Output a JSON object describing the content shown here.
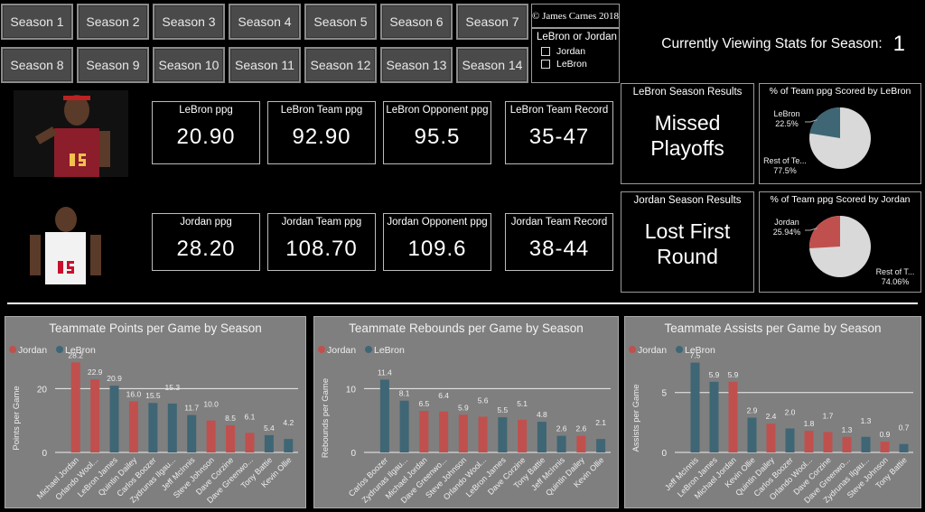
{
  "seasons": [
    "Season 1",
    "Season 2",
    "Season 3",
    "Season 4",
    "Season 5",
    "Season 6",
    "Season 7",
    "Season 8",
    "Season 9",
    "Season 10",
    "Season 11",
    "Season 12",
    "Season 13",
    "Season 14"
  ],
  "copyright": "© James Carnes 2018",
  "toggle": {
    "title": "LeBron or Jordan",
    "options": [
      "Jordan",
      "LeBron"
    ]
  },
  "header": {
    "label": "Currently Viewing Stats for Season:",
    "season": "1"
  },
  "colors": {
    "jordan": "#c0504d",
    "lebron": "#3f6675",
    "rest": "#d9d9d9",
    "panel": "#7f7f7f"
  },
  "lebron": {
    "cards": [
      {
        "label": "LeBron ppg",
        "value": "20.90"
      },
      {
        "label": "LeBron Team ppg",
        "value": "92.90"
      },
      {
        "label": "LeBron Opponent ppg",
        "value": "95.5"
      },
      {
        "label": "LeBron Team Record",
        "value": "35-47"
      }
    ],
    "results_title": "LeBron Season Results",
    "results": "Missed Playoffs",
    "pie": {
      "title": "% of Team ppg Scored by LeBron",
      "player_label": "LeBron",
      "player_pct": "22.5%",
      "player_value": 22.5,
      "rest_label": "Rest of Te...",
      "rest_pct": "77.5%"
    }
  },
  "jordan": {
    "cards": [
      {
        "label": "Jordan ppg",
        "value": "28.20"
      },
      {
        "label": "Jordan Team ppg",
        "value": "108.70"
      },
      {
        "label": "Jordan Opponent ppg",
        "value": "109.6"
      },
      {
        "label": "Jordan Team Record",
        "value": "38-44"
      }
    ],
    "results_title": "Jordan Season Results",
    "results": "Lost First Round",
    "pie": {
      "title": "% of Team ppg Scored by Jordan",
      "player_label": "Jordan",
      "player_pct": "25.94%",
      "player_value": 25.94,
      "rest_label": "Rest of T...",
      "rest_pct": "74.06%"
    }
  },
  "chart_data": [
    {
      "type": "bar",
      "title": "Teammate Points per Game by Season",
      "ylabel": "Points per Game",
      "legend": [
        "Jordan",
        "LeBron"
      ],
      "ylim": [
        0,
        30
      ],
      "yticks": [
        0,
        20
      ],
      "grid": true,
      "legend_position": "top-left",
      "categories": [
        "Michael Jordan",
        "Orlando Wool...",
        "LeBron James",
        "Quintin Dailey",
        "Carlos Boozer",
        "Zydrunas Ilgau...",
        "Jeff McInnis",
        "Steve Johnson",
        "Dave Corzine",
        "Dave Greenwo...",
        "Tony Battie",
        "Kevin Ollie"
      ],
      "values": [
        28.2,
        22.9,
        20.9,
        16.0,
        15.5,
        15.3,
        11.7,
        10.0,
        8.5,
        6.1,
        5.4,
        4.2
      ],
      "series": [
        "Jordan",
        "Jordan",
        "LeBron",
        "Jordan",
        "LeBron",
        "LeBron",
        "LeBron",
        "Jordan",
        "Jordan",
        "Jordan",
        "LeBron",
        "LeBron"
      ]
    },
    {
      "type": "bar",
      "title": "Teammate Rebounds per Game by Season",
      "ylabel": "Rebounds per Game",
      "legend": [
        "Jordan",
        "LeBron"
      ],
      "ylim": [
        0,
        15
      ],
      "yticks": [
        0,
        10
      ],
      "grid": true,
      "legend_position": "top-left",
      "categories": [
        "Carlos Boozer",
        "Zydrunas Ilgau...",
        "Michael Jordan",
        "Dave Greenwo...",
        "Steve Johnson",
        "Orlando Wool...",
        "LeBron James",
        "Dave Corzine",
        "Tony Battie",
        "Jeff McInnis",
        "Quintin Dailey",
        "Kevin Ollie"
      ],
      "values": [
        11.4,
        8.1,
        6.5,
        6.4,
        5.9,
        5.6,
        5.5,
        5.1,
        4.8,
        2.6,
        2.6,
        2.1
      ],
      "series": [
        "LeBron",
        "LeBron",
        "Jordan",
        "Jordan",
        "Jordan",
        "Jordan",
        "LeBron",
        "Jordan",
        "LeBron",
        "LeBron",
        "Jordan",
        "LeBron"
      ]
    },
    {
      "type": "bar",
      "title": "Teammate Assists per Game by Season",
      "ylabel": "Assists per Game",
      "legend": [
        "Jordan",
        "LeBron"
      ],
      "ylim": [
        0,
        8
      ],
      "yticks": [
        0,
        5
      ],
      "grid": true,
      "legend_position": "top-left",
      "categories": [
        "Jeff McInnis",
        "LeBron James",
        "Michael Jordan",
        "Kevin Ollie",
        "Quintin Dailey",
        "Carlos Boozer",
        "Orlando Wool...",
        "Dave Corzine",
        "Dave Greenwo...",
        "Zydrunas Ilgau...",
        "Steve Johnson",
        "Tony Battie"
      ],
      "values": [
        7.5,
        5.9,
        5.9,
        2.9,
        2.4,
        2.0,
        1.8,
        1.7,
        1.3,
        1.3,
        0.9,
        0.7
      ],
      "series": [
        "LeBron",
        "LeBron",
        "Jordan",
        "LeBron",
        "Jordan",
        "LeBron",
        "Jordan",
        "Jordan",
        "Jordan",
        "LeBron",
        "Jordan",
        "LeBron"
      ]
    }
  ]
}
